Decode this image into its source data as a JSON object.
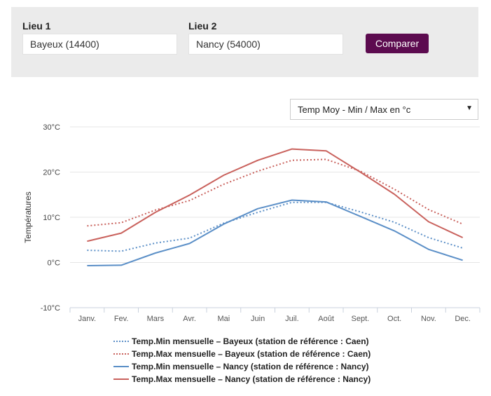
{
  "form": {
    "lieu1_label": "Lieu 1",
    "lieu1_value": "Bayeux (14400)",
    "lieu2_label": "Lieu 2",
    "lieu2_value": "Nancy (54000)",
    "compare_label": "Comparer"
  },
  "selector": {
    "selected": "Temp Moy - Min / Max en °c"
  },
  "colors": {
    "blue": "#5b8fc7",
    "red": "#c9615c",
    "button": "#5c0b4f"
  },
  "chart_data": {
    "type": "line",
    "categories": [
      "Janv.",
      "Fev.",
      "Mars",
      "Avr.",
      "Mai",
      "Juin",
      "Juil.",
      "Août",
      "Sept.",
      "Oct.",
      "Nov.",
      "Dec."
    ],
    "ylabel": "Températures",
    "ylim": [
      -10,
      30
    ],
    "yticks": [
      "30°C",
      "20°C",
      "10°C",
      "0°C",
      "-10°C"
    ],
    "ytick_values": [
      30,
      20,
      10,
      0,
      -10
    ],
    "grid": true,
    "legend_position": "bottom",
    "series": [
      {
        "name": "Temp.Min mensuelle – Bayeux (station de référence : Caen)",
        "style": "dotted",
        "color": "#5b8fc7",
        "values": [
          2.7,
          2.5,
          4.3,
          5.4,
          8.7,
          11.1,
          13.3,
          13.3,
          11.2,
          8.9,
          5.5,
          3.2
        ]
      },
      {
        "name": "Temp.Max mensuelle – Bayeux (station de référence : Caen)",
        "style": "dotted",
        "color": "#c9615c",
        "values": [
          8.1,
          8.8,
          11.6,
          13.7,
          17.3,
          20.2,
          22.6,
          22.8,
          20.2,
          16.2,
          11.7,
          8.5
        ]
      },
      {
        "name": "Temp.Min mensuelle – Nancy (station de référence : Nancy)",
        "style": "solid",
        "color": "#5b8fc7",
        "values": [
          -0.7,
          -0.6,
          2.1,
          4.2,
          8.5,
          11.9,
          13.8,
          13.4,
          10.2,
          7.0,
          2.9,
          0.5
        ]
      },
      {
        "name": "Temp.Max mensuelle – Nancy (station de référence : Nancy)",
        "style": "solid",
        "color": "#c9615c",
        "values": [
          4.7,
          6.5,
          11.1,
          14.9,
          19.3,
          22.6,
          25.1,
          24.7,
          20.0,
          15.1,
          9.0,
          5.5
        ]
      }
    ]
  }
}
